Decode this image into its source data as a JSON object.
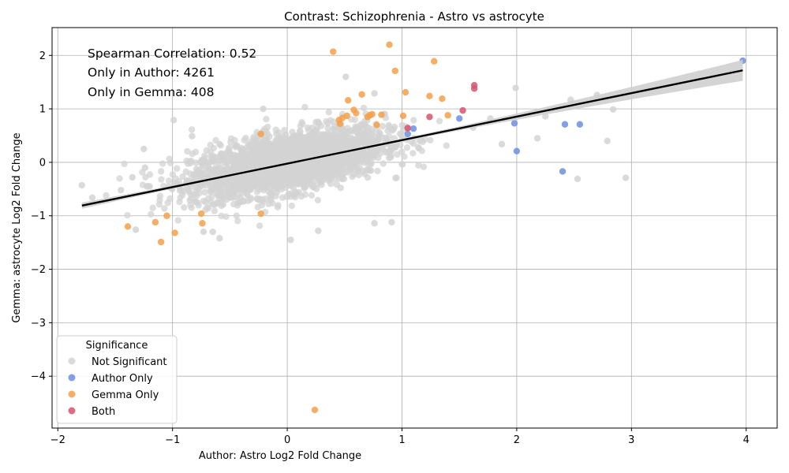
{
  "chart_data": {
    "type": "scatter",
    "title": "Contrast: Schizophrenia - Astro vs astrocyte",
    "xlabel": "Author: Astro Log2 Fold Change",
    "ylabel": "Gemma: astrocyte Log2 Fold Change",
    "xlim": [
      -2.05,
      4.27
    ],
    "ylim": [
      -4.97,
      2.52
    ],
    "xticks": [
      -2,
      -1,
      0,
      1,
      2,
      3,
      4
    ],
    "yticks": [
      -4,
      -3,
      -2,
      -1,
      0,
      1,
      2
    ],
    "grid": true,
    "annotations": [
      "Spearman Correlation: 0.52",
      "Only in Author: 4261",
      "Only in Gemma: 408"
    ],
    "legend": {
      "title": "Significance",
      "placement": "lower-left",
      "entries": [
        "Not Significant",
        "Author Only",
        "Gemma Only",
        "Both"
      ]
    },
    "colors": {
      "Not Significant": "#d3d3d3",
      "Author Only": "#6f8fe0",
      "Gemma Only": "#f5a04a",
      "Both": "#d6546e",
      "regression": "#000000",
      "ci_band": "#cfcfcf"
    },
    "regression": {
      "x": [
        -1.79,
        3.97
      ],
      "y": [
        -0.81,
        1.72
      ]
    },
    "series": [
      {
        "name": "Gemma Only",
        "x": [
          0.24,
          0.4,
          0.89,
          0.94,
          1.28,
          1.03,
          0.65,
          0.53,
          0.58,
          0.6,
          0.7,
          0.74,
          0.82,
          1.01,
          1.24,
          1.35,
          1.4,
          0.45,
          0.48,
          -1.39,
          -1.15,
          -1.1,
          -1.05,
          -0.98,
          -0.75,
          -0.74,
          -0.23,
          -0.23,
          0.46,
          0.72,
          0.52,
          0.78
        ],
        "y": [
          -4.63,
          2.07,
          2.2,
          1.71,
          1.89,
          1.31,
          1.27,
          1.16,
          0.98,
          0.92,
          0.85,
          0.9,
          0.89,
          0.87,
          1.24,
          1.19,
          0.88,
          0.79,
          0.83,
          -1.2,
          -1.12,
          -1.49,
          -1.0,
          -1.32,
          -0.96,
          -1.14,
          -0.96,
          0.53,
          0.72,
          0.88,
          0.87,
          0.7
        ]
      },
      {
        "name": "Author Only",
        "x": [
          3.97,
          2.42,
          2.55,
          1.98,
          2.0,
          2.4,
          1.5,
          1.1,
          1.05
        ],
        "y": [
          1.9,
          0.71,
          0.71,
          0.73,
          0.21,
          -0.17,
          0.82,
          0.63,
          0.53
        ]
      },
      {
        "name": "Both",
        "x": [
          1.63,
          1.63,
          1.53,
          1.24,
          1.05
        ],
        "y": [
          1.44,
          1.38,
          0.97,
          0.85,
          0.64
        ]
      },
      {
        "name": "Not Significant",
        "x": [
          -1.79,
          -1.7,
          -1.45,
          -1.35,
          -1.32,
          -1.25,
          -1.24,
          -1.2,
          -0.99,
          -0.83,
          -0.73,
          -0.65,
          -0.59,
          0.51,
          0.91,
          0.27,
          0.76,
          1.99,
          2.47,
          2.7,
          2.84,
          2.95,
          2.53,
          2.79,
          2.25,
          2.18,
          1.62,
          1.77,
          1.87,
          0.03,
          -0.21,
          0.76
        ],
        "y": [
          -0.43,
          -0.66,
          -0.52,
          -0.28,
          -1.26,
          0.25,
          -0.1,
          -0.45,
          0.79,
          0.49,
          -1.3,
          -1.3,
          -1.42,
          1.6,
          -1.12,
          -1.28,
          -1.14,
          1.39,
          1.17,
          1.26,
          0.99,
          -0.29,
          -0.31,
          0.4,
          0.86,
          0.45,
          0.65,
          0.82,
          0.34,
          -1.45,
          1.0,
          1.29
        ]
      }
    ]
  }
}
